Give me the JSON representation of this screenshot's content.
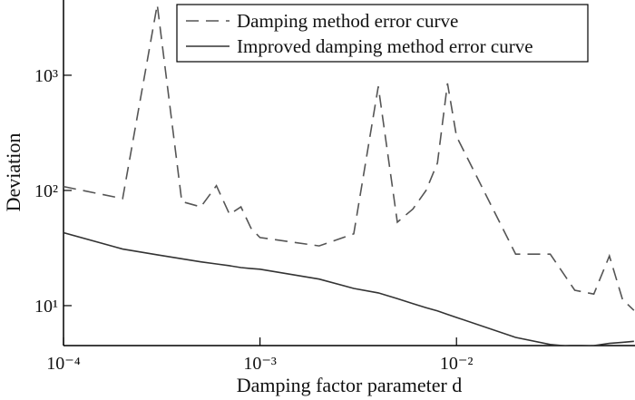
{
  "chart_data": {
    "type": "line",
    "xlabel": "Damping factor parameter d",
    "ylabel": "Deviation",
    "xlog": true,
    "ylog": true,
    "legend": "upper center",
    "x": [
      0.0001,
      0.0002,
      0.0003,
      0.0004,
      0.0005,
      0.0006,
      0.0007,
      0.0008,
      0.0009,
      0.001,
      0.002,
      0.003,
      0.004,
      0.005,
      0.006,
      0.007,
      0.008,
      0.009,
      0.01,
      0.02,
      0.03,
      0.04,
      0.05,
      0.06,
      0.07,
      0.08
    ],
    "series": [
      {
        "name": "Damping method error curve",
        "color": "#555555",
        "dash": "dashed",
        "values": [
          108,
          85,
          4100,
          80,
          72,
          110,
          62,
          72,
          47,
          39,
          33,
          42,
          800,
          53,
          69,
          100,
          173,
          850,
          295,
          28,
          28,
          13.6,
          12.6,
          27,
          11.3,
          9.1
        ]
      },
      {
        "name": "Improved damping method error curve",
        "color": "#333333",
        "dash": "solid",
        "values": [
          43,
          31,
          27.6,
          25.5,
          24,
          23,
          22.2,
          21.4,
          21,
          20.7,
          17,
          14.1,
          12.9,
          11.5,
          10.4,
          9.6,
          9,
          8.4,
          7.9,
          5.3,
          4.6,
          4.4,
          4.5,
          4.7,
          4.8,
          4.9
        ]
      }
    ],
    "xlim": [
      0.0001,
      0.081
    ],
    "ylim": [
      4.5,
      4500
    ],
    "xticks": [
      {
        "value": 0.0001,
        "label": "10⁻⁴"
      },
      {
        "value": 0.001,
        "label": "10⁻³"
      },
      {
        "value": 0.01,
        "label": "10⁻²"
      }
    ],
    "yticks": [
      {
        "value": 10,
        "label": "10¹"
      },
      {
        "value": 100,
        "label": "10²"
      },
      {
        "value": 1000,
        "label": "10³"
      }
    ]
  }
}
